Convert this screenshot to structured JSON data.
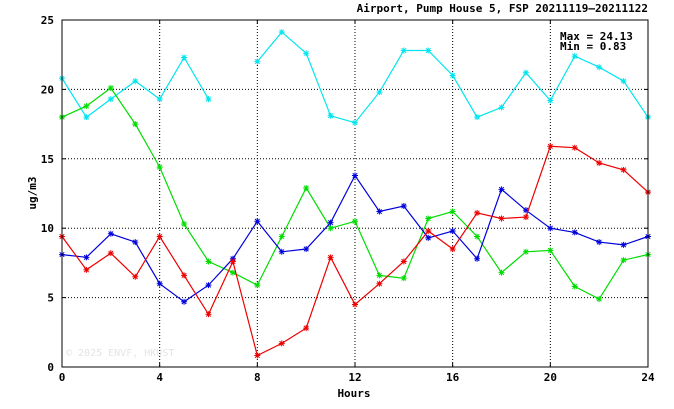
{
  "chart_data": {
    "type": "line",
    "title": "Airport, Pump House 5, FSP 20211119–20211122",
    "xlabel": "Hours",
    "ylabel": "ug/m3",
    "xlim": [
      0,
      24
    ],
    "ylim": [
      0,
      25
    ],
    "xticks": [
      0,
      4,
      8,
      12,
      16,
      20,
      24
    ],
    "yticks": [
      0,
      5,
      10,
      15,
      20,
      25
    ],
    "grid": true,
    "stats": {
      "max_text": "Max = 24.13",
      "min_text": "Min =  0.83"
    },
    "watermark": "© 2025  ENVF, HKUST",
    "x": [
      0,
      1,
      2,
      3,
      4,
      5,
      6,
      7,
      8,
      9,
      10,
      11,
      12,
      13,
      14,
      15,
      16,
      17,
      18,
      19,
      20,
      21,
      22,
      23,
      24
    ],
    "series": [
      {
        "color": "#00e5ee",
        "values": [
          20.8,
          18.0,
          19.3,
          20.6,
          19.3,
          22.3,
          19.3,
          null,
          22.0,
          24.13,
          22.6,
          18.1,
          17.6,
          19.8,
          22.8,
          22.8,
          21.0,
          18.0,
          18.7,
          21.2,
          19.2,
          22.4,
          21.6,
          20.6,
          18.0
        ]
      },
      {
        "color": "#00dd00",
        "values": [
          18.0,
          18.8,
          20.1,
          17.5,
          14.4,
          10.3,
          7.6,
          6.8,
          5.9,
          9.4,
          12.9,
          10.0,
          10.5,
          6.6,
          6.4,
          10.7,
          11.2,
          9.4,
          6.8,
          8.3,
          8.4,
          5.8,
          4.9,
          7.7,
          8.1
        ]
      },
      {
        "color": "#0000dd",
        "values": [
          8.1,
          7.9,
          9.6,
          9.0,
          6.0,
          4.7,
          5.9,
          7.8,
          10.5,
          8.3,
          8.5,
          10.4,
          13.8,
          11.2,
          11.6,
          9.3,
          9.8,
          7.8,
          12.8,
          11.3,
          10.0,
          9.7,
          9.0,
          8.8,
          9.4
        ]
      },
      {
        "color": "#ee0000",
        "values": [
          9.4,
          7.0,
          8.2,
          6.5,
          9.4,
          6.6,
          3.8,
          7.6,
          0.83,
          1.7,
          2.8,
          7.9,
          4.5,
          6.0,
          7.6,
          9.8,
          8.5,
          11.1,
          10.7,
          10.8,
          15.9,
          15.8,
          14.7,
          14.2,
          12.6
        ]
      }
    ]
  }
}
